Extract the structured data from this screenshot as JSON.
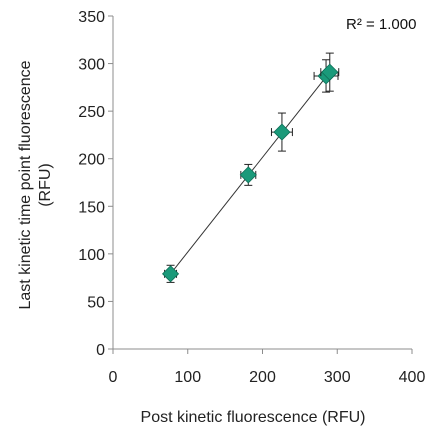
{
  "chart_data": {
    "type": "scatter",
    "xlabel": "Post kinetic  fluorescence (RFU)",
    "ylabel_lines": [
      "Last kinetic time point  fluorescence",
      "(RFU)"
    ],
    "xlim": [
      0,
      400
    ],
    "ylim": [
      0,
      350
    ],
    "x_ticks": [
      0,
      100,
      200,
      300,
      400
    ],
    "y_ticks": [
      0,
      50,
      100,
      150,
      200,
      250,
      300,
      350
    ],
    "grid": false,
    "annotation": "R² = 1.000",
    "marker": "diamond",
    "marker_color": "#1a9a7a",
    "series": [
      {
        "points": [
          {
            "x": 77,
            "y": 79,
            "x_err": 8,
            "y_err": 9
          },
          {
            "x": 181,
            "y": 183,
            "x_err": 10,
            "y_err": 11
          },
          {
            "x": 226,
            "y": 228,
            "x_err": 14,
            "y_err": 20
          },
          {
            "x": 285,
            "y": 287,
            "x_err": 16,
            "y_err": 17
          },
          {
            "x": 290,
            "y": 291,
            "x_err": 12,
            "y_err": 20
          }
        ]
      }
    ],
    "trendline": {
      "x": [
        77,
        290
      ],
      "y": [
        79,
        291
      ]
    }
  }
}
